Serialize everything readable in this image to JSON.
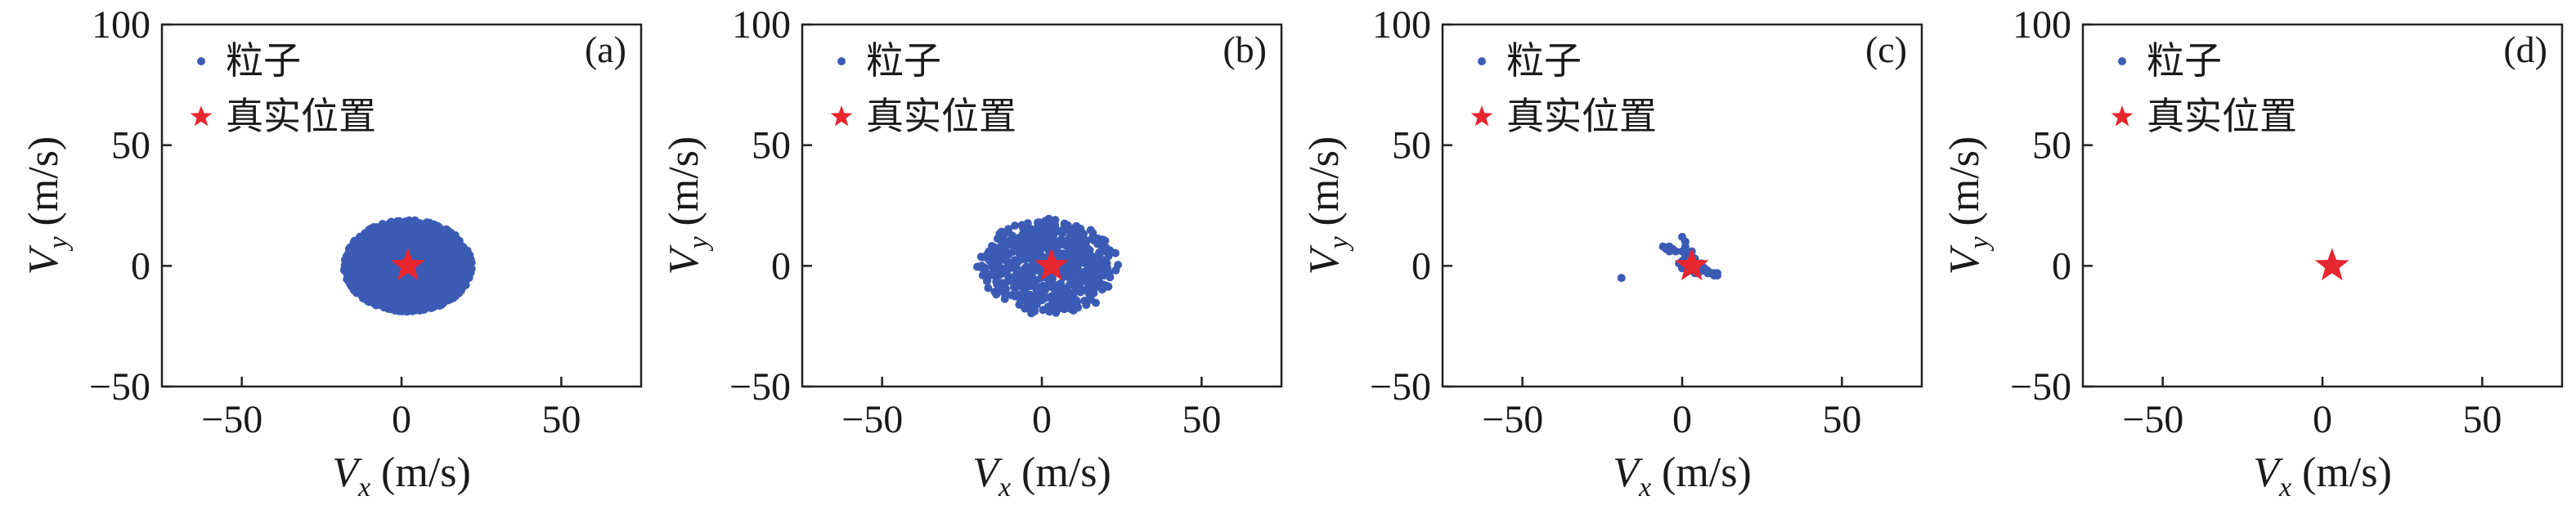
{
  "chart_data": [
    {
      "type": "scatter",
      "panel_label": "(a)",
      "xlabel": {
        "var": "V",
        "sub": "x",
        "unit": " (m/s)"
      },
      "ylabel": {
        "var": "V",
        "sub": "y",
        "unit": " (m/s)"
      },
      "xlim": [
        -75,
        75
      ],
      "ylim": [
        -50,
        100
      ],
      "xticks": [
        -50,
        0,
        50
      ],
      "yticks": [
        -50,
        0,
        50,
        100
      ],
      "legend": {
        "position": "top-left",
        "particles": "粒子",
        "true_position": "真实位置"
      },
      "colors": {
        "particles": "#3b5bb5",
        "true_position": "#e8262f"
      },
      "particle_cloud": {
        "shape": "ellipse",
        "center": [
          2,
          0
        ],
        "radius_x": 20,
        "radius_y": 19,
        "count": 2400,
        "distribution": "uniform"
      },
      "true_position": [
        2,
        0
      ]
    },
    {
      "type": "scatter",
      "panel_label": "(b)",
      "xlabel": {
        "var": "V",
        "sub": "x",
        "unit": " (m/s)"
      },
      "ylabel": {
        "var": "V",
        "sub": "y",
        "unit": " (m/s)"
      },
      "xlim": [
        -75,
        75
      ],
      "ylim": [
        -50,
        100
      ],
      "xticks": [
        -50,
        0,
        50
      ],
      "yticks": [
        -50,
        0,
        50,
        100
      ],
      "legend": {
        "position": "top-left",
        "particles": "粒子",
        "true_position": "真实位置"
      },
      "colors": {
        "particles": "#3b5bb5",
        "true_position": "#e8262f"
      },
      "particle_cloud": {
        "shape": "ellipse",
        "center": [
          2,
          0
        ],
        "radius_x": 21,
        "radius_y": 19,
        "count": 650,
        "distribution": "sparse"
      },
      "true_position": [
        3,
        0
      ]
    },
    {
      "type": "scatter",
      "panel_label": "(c)",
      "xlabel": {
        "var": "V",
        "sub": "x",
        "unit": " (m/s)"
      },
      "ylabel": {
        "var": "V",
        "sub": "y",
        "unit": " (m/s)"
      },
      "xlim": [
        -75,
        75
      ],
      "ylim": [
        -50,
        100
      ],
      "xticks": [
        -50,
        0,
        50
      ],
      "yticks": [
        -50,
        0,
        50,
        100
      ],
      "legend": {
        "position": "top-left",
        "particles": "粒子",
        "true_position": "真实位置"
      },
      "colors": {
        "particles": "#3b5bb5",
        "true_position": "#e8262f"
      },
      "particle_points": [
        [
          -19,
          -5
        ],
        [
          -6,
          8
        ],
        [
          -5,
          7
        ],
        [
          -4,
          8
        ],
        [
          -3,
          7
        ],
        [
          -2,
          6
        ],
        [
          -4,
          6
        ],
        [
          0,
          12
        ],
        [
          1,
          10
        ],
        [
          1,
          8
        ],
        [
          0,
          6
        ],
        [
          2,
          5
        ],
        [
          1,
          4
        ],
        [
          3,
          4
        ],
        [
          3,
          3
        ],
        [
          0,
          2
        ],
        [
          1,
          1
        ],
        [
          2,
          1
        ],
        [
          3,
          2
        ],
        [
          4,
          1
        ],
        [
          4,
          0
        ],
        [
          5,
          0
        ],
        [
          5,
          -1
        ],
        [
          6,
          -1
        ],
        [
          6,
          -2
        ],
        [
          7,
          -1
        ],
        [
          7,
          -2
        ],
        [
          8,
          -2
        ],
        [
          8,
          -3
        ],
        [
          9,
          -3
        ],
        [
          10,
          -3
        ],
        [
          10,
          -4
        ],
        [
          11,
          -3
        ],
        [
          11,
          -4
        ],
        [
          -1,
          1
        ],
        [
          0,
          -1
        ],
        [
          2,
          -2
        ],
        [
          3,
          -2
        ],
        [
          4,
          -3
        ],
        [
          5,
          -3
        ],
        [
          4,
          3
        ],
        [
          6,
          1
        ],
        [
          2,
          3
        ],
        [
          3,
          6
        ],
        [
          1,
          6
        ]
      ],
      "true_position": [
        3,
        0
      ]
    },
    {
      "type": "scatter",
      "panel_label": "(d)",
      "xlabel": {
        "var": "V",
        "sub": "x",
        "unit": " (m/s)"
      },
      "ylabel": {
        "var": "V",
        "sub": "y",
        "unit": " (m/s)"
      },
      "xlim": [
        -75,
        75
      ],
      "ylim": [
        -50,
        100
      ],
      "xticks": [
        -50,
        0,
        50
      ],
      "yticks": [
        -50,
        0,
        50,
        100
      ],
      "legend": {
        "position": "top-left",
        "particles": "粒子",
        "true_position": "真实位置"
      },
      "colors": {
        "particles": "#3b5bb5",
        "true_position": "#e8262f"
      },
      "particle_points": [
        [
          3,
          0
        ]
      ],
      "true_position": [
        3,
        0
      ]
    }
  ]
}
